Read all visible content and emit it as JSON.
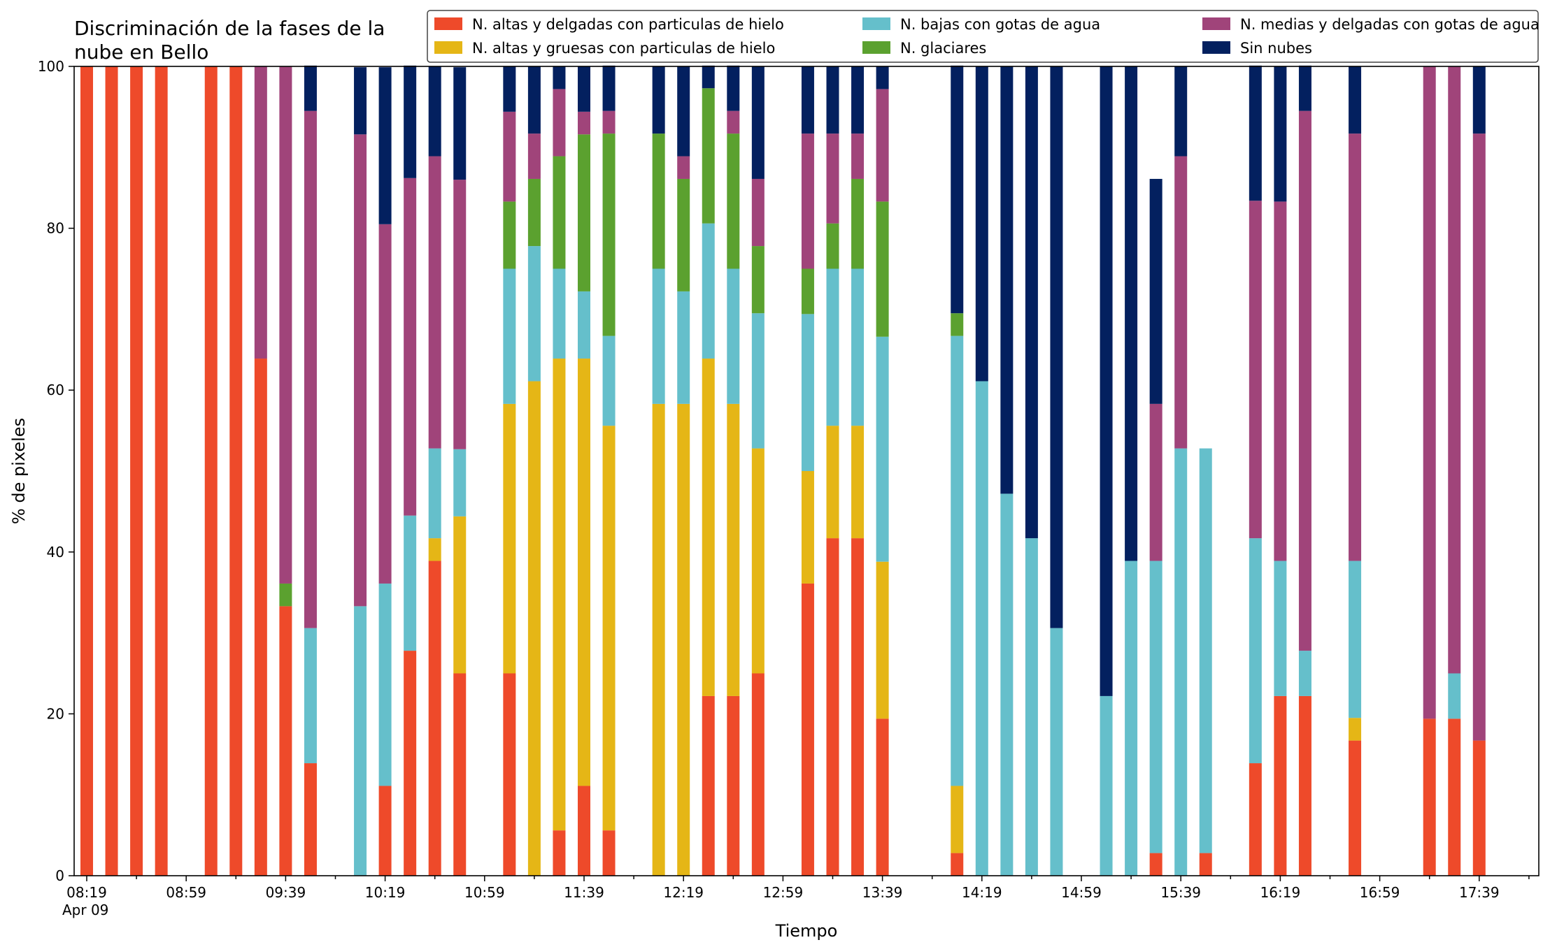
{
  "chart_data": {
    "type": "bar",
    "stacked": true,
    "title": "Discriminación de la fases de la\nnube en Bello",
    "xlabel": "Tiempo",
    "ylabel": "% de pixeles",
    "ylim": [
      0,
      100
    ],
    "yticks": [
      "0",
      "20",
      "40",
      "60",
      "80",
      "100"
    ],
    "xtick_labels": [
      "08:19",
      "08:59",
      "09:39",
      "10:19",
      "10:59",
      "11:39",
      "12:19",
      "12:59",
      "13:39",
      "14:19",
      "14:59",
      "15:39",
      "16:19",
      "16:59",
      "17:39"
    ],
    "x_sub_label": "Apr 09",
    "legend_placement": "top-right",
    "x": [
      "08:19",
      "08:29",
      "08:39",
      "08:49",
      "08:59",
      "09:09",
      "09:19",
      "09:29",
      "09:39",
      "09:49",
      "09:59",
      "10:09",
      "10:19",
      "10:29",
      "10:39",
      "10:49",
      "10:59",
      "11:09",
      "11:19",
      "11:29",
      "11:39",
      "11:49",
      "11:59",
      "12:09",
      "12:19",
      "12:29",
      "12:39",
      "12:49",
      "12:59",
      "13:09",
      "13:19",
      "13:29",
      "13:39",
      "13:49",
      "13:59",
      "14:09",
      "14:19",
      "14:29",
      "14:39",
      "14:49",
      "14:59",
      "15:09",
      "15:19",
      "15:29",
      "15:39",
      "15:49",
      "15:59",
      "16:09",
      "16:19",
      "16:29",
      "16:39",
      "16:49",
      "16:59",
      "17:09",
      "17:19",
      "17:29",
      "17:39"
    ],
    "series": [
      {
        "name": "N. altas y delgadas con particulas de hielo",
        "color": "#ee4a2a",
        "values": [
          100,
          100,
          100,
          100,
          0,
          100,
          100,
          63.9,
          33.3,
          13.9,
          0,
          0,
          11.1,
          27.8,
          38.9,
          25,
          0,
          25,
          0,
          5.6,
          11.1,
          5.6,
          0,
          0,
          0,
          22.2,
          22.2,
          25,
          0,
          36.1,
          41.7,
          41.7,
          19.4,
          0,
          0,
          2.8,
          0,
          0,
          0,
          0,
          0,
          0,
          0,
          2.8,
          0,
          2.8,
          0,
          13.9,
          22.2,
          22.2,
          0,
          16.7,
          0,
          0,
          19.4,
          19.4,
          16.7
        ]
      },
      {
        "name": "N. altas y gruesas con particulas de hielo",
        "color": "#e5b616",
        "values": [
          0,
          0,
          0,
          0,
          0,
          0,
          0,
          0,
          0,
          0,
          0,
          0,
          0,
          0,
          2.8,
          19.4,
          0,
          33.3,
          61.1,
          58.3,
          52.8,
          50,
          0,
          58.3,
          58.3,
          41.7,
          36.1,
          27.8,
          0,
          13.9,
          13.9,
          13.9,
          19.4,
          0,
          0,
          8.3,
          0,
          0,
          0,
          0,
          0,
          0,
          0,
          0,
          0,
          0,
          0,
          0,
          0,
          0,
          0,
          2.8,
          0,
          0,
          0,
          0,
          0
        ]
      },
      {
        "name": "N. bajas con gotas de agua",
        "color": "#65bfcb",
        "values": [
          0,
          0,
          0,
          0,
          0,
          0,
          0,
          0,
          0,
          16.7,
          0,
          33.3,
          25,
          16.7,
          11.1,
          8.3,
          0,
          16.7,
          16.7,
          11.1,
          8.3,
          11.1,
          0,
          16.7,
          13.9,
          16.7,
          16.7,
          16.7,
          0,
          19.4,
          19.4,
          19.4,
          27.8,
          0,
          0,
          55.6,
          61.1,
          47.2,
          41.7,
          30.6,
          0,
          22.2,
          38.9,
          36.1,
          52.8,
          50,
          0,
          27.8,
          16.7,
          5.6,
          0,
          19.4,
          0,
          0,
          0,
          5.6,
          0
        ]
      },
      {
        "name": "N. glaciares",
        "color": "#5ba12f",
        "values": [
          0,
          0,
          0,
          0,
          0,
          0,
          0,
          0,
          2.8,
          0,
          0,
          0,
          0,
          0,
          0,
          0,
          0,
          8.3,
          8.3,
          13.9,
          19.4,
          25,
          0,
          16.7,
          13.9,
          16.7,
          16.7,
          8.3,
          0,
          5.6,
          5.6,
          11.1,
          16.7,
          0,
          0,
          2.8,
          0,
          0,
          0,
          0,
          0,
          0,
          0,
          0,
          0,
          0,
          0,
          0,
          0,
          0,
          0,
          0,
          0,
          0,
          0,
          0,
          0
        ]
      },
      {
        "name": "N. medias y delgadas con gotas de agua",
        "color": "#a0447a",
        "values": [
          0,
          0,
          0,
          0,
          0,
          0,
          0,
          36.1,
          63.9,
          63.9,
          0,
          58.3,
          44.4,
          41.7,
          36.1,
          33.3,
          0,
          11.1,
          5.6,
          8.3,
          2.8,
          2.8,
          0,
          0,
          2.8,
          0,
          2.8,
          8.3,
          0,
          16.7,
          11.1,
          5.6,
          13.9,
          0,
          0,
          0,
          0,
          0,
          0,
          0,
          0,
          0,
          0,
          19.4,
          36.1,
          0,
          0,
          41.7,
          44.4,
          66.7,
          0,
          52.8,
          0,
          0,
          80.6,
          75,
          75
        ]
      },
      {
        "name": "Sin nubes",
        "color": "#03205f",
        "values": [
          0,
          0,
          0,
          0,
          0,
          0,
          0,
          0,
          0,
          5.6,
          0,
          8.3,
          19.4,
          13.9,
          11.1,
          13.9,
          0,
          5.6,
          8.3,
          2.8,
          5.6,
          5.6,
          0,
          8.3,
          11.1,
          2.8,
          5.6,
          13.9,
          0,
          8.3,
          8.3,
          8.3,
          2.8,
          0,
          0,
          30.6,
          38.9,
          52.8,
          58.3,
          69.4,
          0,
          77.8,
          61.1,
          27.8,
          11.1,
          0,
          0,
          16.7,
          16.7,
          5.6,
          0,
          8.3,
          0,
          0,
          0,
          0,
          8.3
        ]
      }
    ]
  }
}
